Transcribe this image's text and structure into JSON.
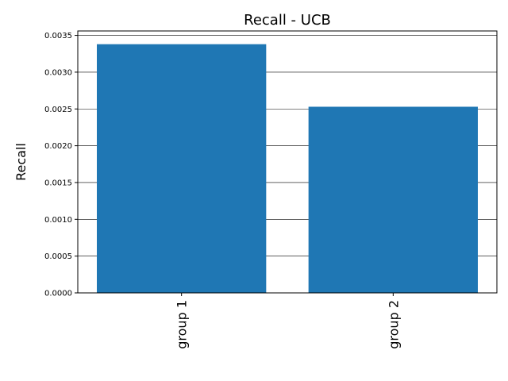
{
  "chart_data": {
    "type": "bar",
    "title": "Recall - UCB",
    "xlabel": "",
    "ylabel": "Recall",
    "categories": [
      "group 1",
      "group 2"
    ],
    "values": [
      0.00338,
      0.00253
    ],
    "ylim": [
      0,
      0.00356
    ],
    "yticks": [
      "0.0000",
      "0.0005",
      "0.0010",
      "0.0015",
      "0.0020",
      "0.0025",
      "0.0030",
      "0.0035"
    ],
    "grid": "horizontal",
    "bar_color": "#1f77b4"
  }
}
